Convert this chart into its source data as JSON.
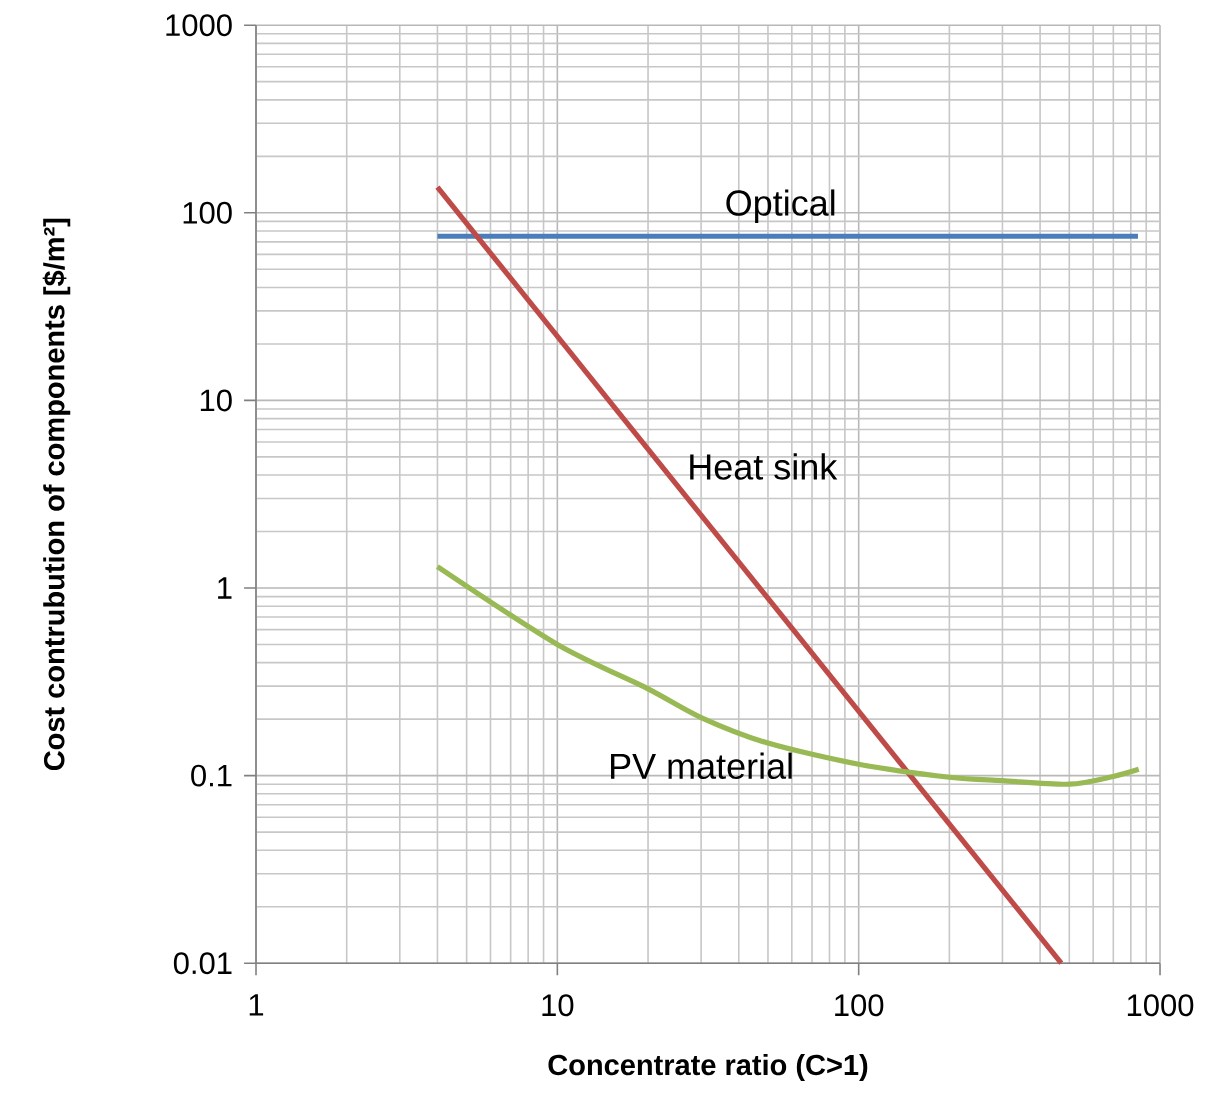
{
  "chart_data": {
    "type": "line",
    "xlabel": "Concentrate ratio (C>1)",
    "ylabel": "Cost contrubution of components [$/m²]",
    "log": "xy",
    "grid": true,
    "legend": false,
    "marker": "none",
    "line_style": "solid",
    "xlim": [
      1,
      1000
    ],
    "ylim": [
      0.01,
      1000
    ],
    "xticks": [
      1,
      10,
      100,
      1000
    ],
    "yticks": [
      0.01,
      0.1,
      1,
      10,
      100,
      1000
    ],
    "series": [
      {
        "name": "Optical",
        "color": "#4a7ebb",
        "x": [
          4,
          845
        ],
        "values": [
          75,
          75
        ]
      },
      {
        "name": "Heat sink",
        "color": "#be4b48",
        "x": [
          4,
          470
        ],
        "values": [
          137,
          0.01
        ]
      },
      {
        "name": "PV material",
        "color": "#98b954",
        "x": [
          4,
          10,
          20,
          30,
          50,
          100,
          200,
          300,
          500,
          700,
          850
        ],
        "values": [
          1.3,
          0.5,
          0.29,
          0.204,
          0.149,
          0.115,
          0.098,
          0.094,
          0.09,
          0.099,
          0.108
        ]
      }
    ]
  }
}
